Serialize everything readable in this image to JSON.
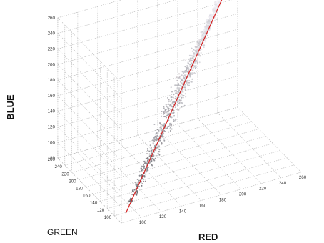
{
  "chart_data": {
    "type": "scatter",
    "title": "",
    "xlabel": "RED",
    "ylabel": "GREEN",
    "zlabel": "BLUE",
    "xlim": [
      80,
      260
    ],
    "ylim": [
      80,
      260
    ],
    "zlim": [
      80,
      260
    ],
    "x_ticks": [
      "100",
      "120",
      "140",
      "160",
      "180",
      "200",
      "220",
      "240",
      "260"
    ],
    "y_ticks": [
      "100",
      "120",
      "140",
      "160",
      "180",
      "200",
      "220",
      "240",
      "260"
    ],
    "z_ticks": [
      "80",
      "100",
      "120",
      "140",
      "160",
      "180",
      "200",
      "220",
      "240",
      "260"
    ],
    "grid": true,
    "legend": "none",
    "fit_line": {
      "color": "#d62020",
      "start": [
        88,
        90,
        85
      ],
      "end": [
        255,
        255,
        258
      ]
    },
    "series": [
      {
        "points": [
          [
            96,
            98,
            95
          ],
          [
            102,
            104,
            100
          ],
          [
            108,
            109,
            106
          ],
          [
            112,
            114,
            110
          ],
          [
            118,
            120,
            116
          ],
          [
            122,
            124,
            121
          ],
          [
            126,
            128,
            125
          ],
          [
            130,
            132,
            129
          ],
          [
            134,
            136,
            134
          ],
          [
            138,
            140,
            137
          ],
          [
            142,
            144,
            142
          ],
          [
            146,
            148,
            146
          ],
          [
            150,
            152,
            150
          ],
          [
            154,
            156,
            155
          ],
          [
            158,
            160,
            159
          ],
          [
            162,
            164,
            163
          ],
          [
            166,
            168,
            167
          ],
          [
            170,
            172,
            172
          ],
          [
            174,
            176,
            176
          ],
          [
            178,
            180,
            180
          ],
          [
            182,
            184,
            184
          ],
          [
            186,
            188,
            189
          ],
          [
            190,
            192,
            193
          ],
          [
            194,
            196,
            197
          ],
          [
            198,
            200,
            202
          ],
          [
            202,
            204,
            206
          ],
          [
            206,
            208,
            210
          ],
          [
            210,
            212,
            215
          ],
          [
            214,
            216,
            219
          ],
          [
            218,
            220,
            223
          ],
          [
            222,
            224,
            227
          ],
          [
            226,
            228,
            232
          ],
          [
            230,
            232,
            236
          ],
          [
            234,
            236,
            240
          ],
          [
            238,
            240,
            244
          ],
          [
            242,
            244,
            248
          ],
          [
            246,
            248,
            252
          ],
          [
            250,
            250,
            255
          ]
        ]
      }
    ],
    "colors": {
      "fit_line": "#d62020",
      "grid": "#b8b8b8",
      "points_dark": "#6e6e6e",
      "points_light": "#f2eef4"
    }
  }
}
